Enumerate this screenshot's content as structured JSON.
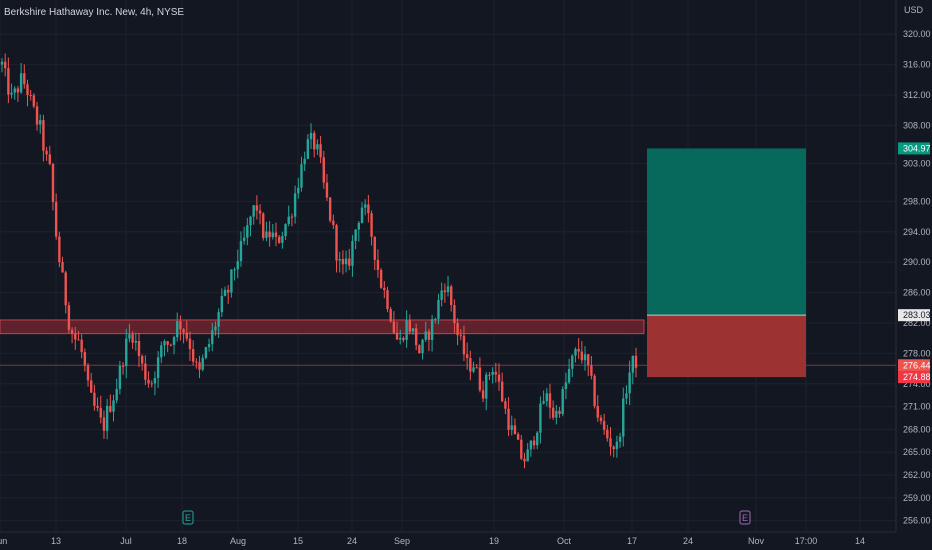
{
  "chart_data": {
    "type": "candlestick",
    "title": "Berkshire Hathaway Inc. New, 4h, NYSE",
    "currency": "USD",
    "ylim": [
      254.5,
      324.5
    ],
    "y_ticks": [
      "320.00",
      "316.00",
      "312.00",
      "308.00",
      "303.00",
      "298.00",
      "294.00",
      "290.00",
      "286.00",
      "282.00",
      "278.00",
      "274.00",
      "271.00",
      "268.00",
      "265.00",
      "262.00",
      "259.00",
      "256.00"
    ],
    "x_ticks": [
      "Jun",
      "13",
      "Jul",
      "18",
      "Aug",
      "15",
      "24",
      "Sep",
      "19",
      "Oct",
      "17",
      "24",
      "Nov",
      "17:00",
      "14"
    ],
    "earnings_markers": [
      "E",
      "E"
    ],
    "colors": {
      "up": "#26a69a",
      "down": "#ef5350",
      "background": "#131722",
      "grid": "#1e222d"
    },
    "resistance_zone": {
      "low": 280.6,
      "high": 282.4
    },
    "current_price": "276.44",
    "position": {
      "type": "long",
      "target": "304.97",
      "entry": "283.03",
      "stop": "274.88"
    },
    "ohlc_path": [
      316.0,
      313.5,
      311.5,
      312.5,
      314.0,
      313.2,
      311.0,
      309.0,
      307.5,
      304.0,
      302.0,
      295.0,
      290.0,
      286.0,
      282.0,
      280.0,
      279.5,
      277.0,
      273.0,
      271.0,
      270.0,
      268.0,
      270.5,
      272.0,
      274.0,
      277.0,
      279.5,
      281.0,
      279.0,
      276.5,
      275.0,
      274.0,
      276.0,
      278.0,
      280.0,
      279.0,
      281.5,
      282.0,
      281.0,
      279.5,
      277.0,
      275.0,
      277.5,
      279.0,
      281.0,
      283.0,
      285.0,
      286.0,
      288.5,
      290.5,
      292.0,
      294.0,
      296.5,
      297.5,
      294.5,
      293.0,
      294.0,
      292.5,
      293.5,
      295.0,
      296.0,
      299.0,
      301.5,
      304.5,
      306.0,
      305.5,
      304.0,
      300.0,
      297.0,
      294.0,
      290.0,
      289.0,
      289.5,
      292.5,
      295.5,
      297.5,
      296.0,
      293.5,
      290.0,
      287.0,
      285.5,
      283.0,
      280.0,
      279.5,
      282.0,
      281.5,
      280.0,
      278.0,
      279.5,
      281.0,
      282.5,
      285.0,
      287.5,
      286.0,
      283.0,
      280.0,
      278.5,
      276.0,
      277.0,
      275.0,
      273.0,
      274.5,
      276.5,
      275.0,
      272.5,
      270.0,
      268.0,
      266.5,
      264.5,
      264.0,
      265.5,
      267.5,
      270.0,
      272.5,
      271.5,
      269.5,
      271.0,
      273.0,
      275.5,
      277.5,
      278.5,
      277.5,
      276.0,
      273.0,
      270.0,
      268.0,
      267.0,
      266.0,
      265.5,
      269.5,
      273.5,
      276.5,
      277.0
    ]
  }
}
